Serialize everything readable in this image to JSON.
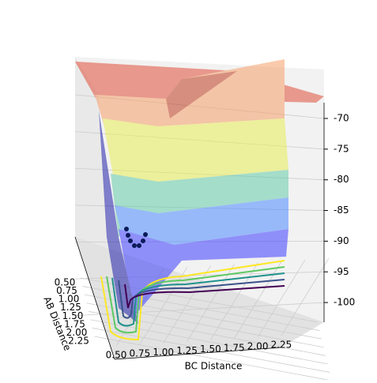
{
  "chart_data": {
    "type": "surface",
    "xlabel": "BC Distance",
    "ylabel": "AB Distance",
    "xlim": [
      0.4,
      2.4
    ],
    "ylim": [
      0.4,
      2.4
    ],
    "zlim": [
      -103,
      -68
    ],
    "xticks": [
      {
        "value": 0.5,
        "label": "0.50"
      },
      0.75,
      {
        "value": 1.0,
        "label": "1.00"
      },
      1.25,
      {
        "value": 1.5,
        "label": "1.50"
      },
      1.75,
      {
        "value": 2.0,
        "label": "2.00"
      },
      2.25
    ],
    "yticks": [
      {
        "value": 0.5,
        "label": "0.50"
      },
      0.75,
      {
        "value": 1.0,
        "label": "1.00"
      },
      1.25,
      {
        "value": 1.5,
        "label": "1.50"
      },
      1.75,
      {
        "value": 2.0,
        "label": "2.00"
      },
      2.25
    ],
    "zticks": [
      -70,
      -75,
      -80,
      -85,
      -90,
      -95,
      -100
    ],
    "grid": true
  }
}
